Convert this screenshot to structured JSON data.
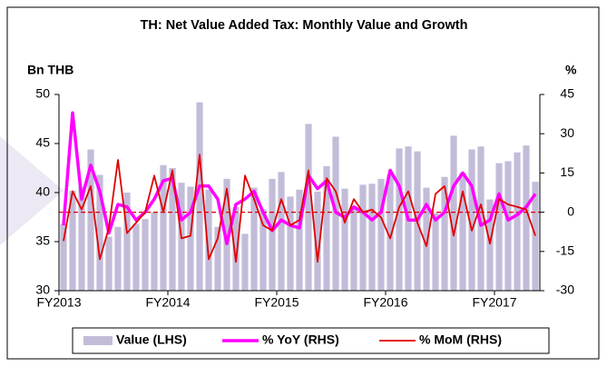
{
  "chart_data": {
    "type": "bar",
    "title": "TH: Net Value Added Tax: Monthly Value and Growth",
    "y_label": "Bn THB",
    "y2_label": "%",
    "categories": [
      "FY2013",
      null,
      null,
      null,
      null,
      null,
      null,
      null,
      null,
      null,
      null,
      null,
      "FY2014",
      null,
      null,
      null,
      null,
      null,
      null,
      null,
      null,
      null,
      null,
      null,
      "FY2015",
      null,
      null,
      null,
      null,
      null,
      null,
      null,
      null,
      null,
      null,
      null,
      "FY2016",
      null,
      null,
      null,
      null,
      null,
      null,
      null,
      null,
      null,
      null,
      null,
      "FY2017",
      null,
      null,
      null,
      null
    ],
    "ylim": [
      30,
      50
    ],
    "yticks": [
      30,
      35,
      40,
      45,
      50
    ],
    "y2lim": [
      -30,
      45
    ],
    "y2ticks": [
      -30,
      -15,
      0,
      15,
      30,
      45
    ],
    "zero_line": true,
    "series": [
      {
        "name": "Value (LHS)",
        "type": "bar",
        "color": "#c3bcd9",
        "values": [
          36.8,
          40.2,
          40.6,
          44.4,
          41.8,
          35.5,
          36.5,
          40.0,
          36.8,
          37.3,
          38.0,
          42.8,
          42.5,
          41.0,
          40.6,
          49.2,
          40.3,
          36.5,
          41.4,
          38.5,
          35.8,
          40.5,
          38.3,
          41.4,
          42.1,
          39.6,
          40.3,
          47.0,
          40.1,
          42.7,
          45.7,
          40.4,
          38.6,
          40.8,
          40.9,
          41.4,
          41.8,
          44.5,
          44.7,
          44.2,
          40.5,
          37.9,
          41.6,
          45.8,
          42.0,
          44.4,
          44.7,
          39.3,
          43.0,
          43.2,
          44.1,
          44.8,
          41.1
        ]
      },
      {
        "name": "% YoY (RHS)",
        "type": "line",
        "axis": "y2",
        "color": "#ff00ff",
        "values": [
          -5,
          38,
          5,
          18,
          8,
          -8,
          3,
          2,
          -3,
          0,
          5,
          12,
          13,
          -3,
          0,
          10,
          10,
          5,
          -12,
          3,
          5,
          8,
          0,
          -7,
          -3,
          -5,
          -6,
          14,
          9,
          12,
          0,
          -2,
          2,
          0,
          -3,
          0,
          16,
          10,
          -3,
          -3,
          3,
          -3,
          0,
          10,
          15,
          10,
          -5,
          -3,
          7,
          -3,
          -1,
          2,
          7
        ]
      },
      {
        "name": "% MoM (RHS)",
        "type": "line",
        "axis": "y2",
        "color": "#e00000",
        "values": [
          -11,
          8,
          1,
          10,
          -18,
          -6,
          20,
          -8,
          -4,
          0,
          14,
          0,
          16,
          -10,
          -9,
          22,
          -18,
          -10,
          9,
          -19,
          14,
          5,
          -5,
          -7,
          5,
          -5,
          -3,
          16,
          -19,
          13,
          8,
          -4,
          5,
          0,
          1,
          -2,
          -10,
          2,
          8,
          -4,
          -13,
          7,
          10,
          -9,
          8,
          -7,
          3,
          -12,
          5,
          3,
          2,
          1,
          -9
        ]
      }
    ]
  }
}
